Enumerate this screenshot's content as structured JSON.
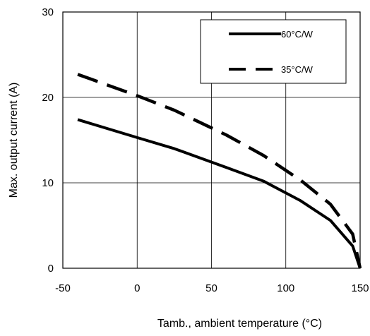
{
  "chart_data": {
    "type": "line",
    "xlabel": "Tamb., ambient temperature (°C)",
    "ylabel": "Max. output current (A)",
    "xlim": [
      -50,
      150
    ],
    "ylim": [
      0,
      30
    ],
    "xticks": [
      -50,
      0,
      50,
      100,
      150
    ],
    "yticks": [
      0,
      10,
      20,
      30
    ],
    "x_tick_labels": [
      "-50",
      "0",
      "50",
      "100",
      "150"
    ],
    "y_tick_labels": [
      "0",
      "10",
      "20",
      "30"
    ],
    "grid": true,
    "legend_position": "top-right",
    "series": [
      {
        "name": "60°C/W",
        "style": "solid",
        "color": "#000000",
        "x": [
          -40,
          0,
          25,
          60,
          85,
          110,
          130,
          145,
          150
        ],
        "y": [
          17.4,
          15.3,
          14.0,
          11.8,
          10.2,
          7.9,
          5.6,
          2.6,
          0
        ]
      },
      {
        "name": "35°C/W",
        "style": "dashed",
        "color": "#000000",
        "x": [
          -40,
          0,
          25,
          60,
          85,
          110,
          130,
          145,
          150
        ],
        "y": [
          22.7,
          20.2,
          18.5,
          15.6,
          13.2,
          10.3,
          7.5,
          4.0,
          0
        ]
      }
    ]
  }
}
